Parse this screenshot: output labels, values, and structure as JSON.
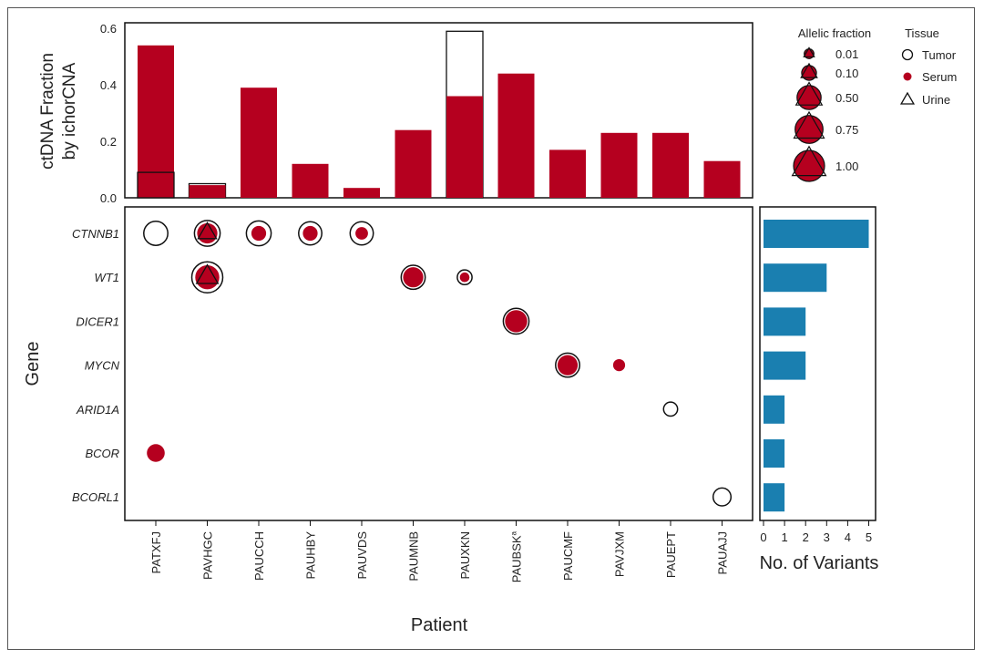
{
  "colors": {
    "serum": "#B5001F",
    "variants_bar": "#1A7FB0",
    "outline": "#111111"
  },
  "chart_data": [
    {
      "type": "bar",
      "ylabel_lines": [
        "ctDNA Fraction",
        "by ichorCNA"
      ],
      "ylim": [
        0,
        0.62
      ],
      "yticks": [
        "0.0",
        "0.2",
        "0.4",
        "0.6"
      ],
      "ytick_values": [
        0,
        0.2,
        0.4,
        0.6
      ],
      "categories": [
        "PATXFJ",
        "PAVHGC",
        "PAUCCH",
        "PAUHBY",
        "PAUVDS",
        "PAUMNB",
        "PAUXKN",
        "PAUBSK",
        "PAUCMF",
        "PAVJXM",
        "PAUEPT",
        "PAUAJJ"
      ],
      "series": [
        {
          "tissue": "Serum",
          "values": [
            0.54,
            0.045,
            0.39,
            0.12,
            0.035,
            0.24,
            0.36,
            0.44,
            0.17,
            0.23,
            0.23,
            0.13
          ]
        },
        {
          "tissue": "Urine",
          "values": [
            0.09,
            0.05,
            null,
            null,
            null,
            null,
            0.59,
            null,
            null,
            null,
            null,
            null
          ]
        }
      ]
    },
    {
      "type": "scatter",
      "xlabel": "Patient",
      "ylabel": "Gene",
      "genes": [
        "CTNNB1",
        "WT1",
        "DICER1",
        "MYCN",
        "ARID1A",
        "BCOR",
        "BCORL1"
      ],
      "patients": [
        "PATXFJ",
        "PAVHGC",
        "PAUCCH",
        "PAUHBY",
        "PAUVDS",
        "PAUMNB",
        "PAUXKN",
        "PAUBSK",
        "PAUCMF",
        "PAVJXM",
        "PAUEPT",
        "PAUAJJ"
      ],
      "patient_superscript": {
        "PAUBSK": "a"
      },
      "points": [
        {
          "gene": "CTNNB1",
          "patient": "PATXFJ",
          "tumor": 0.5
        },
        {
          "gene": "CTNNB1",
          "patient": "PAVHGC",
          "tumor": 0.6,
          "serum": 0.3,
          "urine": 0.35
        },
        {
          "gene": "CTNNB1",
          "patient": "PAUCCH",
          "tumor": 0.55,
          "serum": 0.1
        },
        {
          "gene": "CTNNB1",
          "patient": "PAUHBY",
          "tumor": 0.45,
          "serum": 0.1
        },
        {
          "gene": "CTNNB1",
          "patient": "PAUVDS",
          "tumor": 0.45,
          "serum": 0.05
        },
        {
          "gene": "WT1",
          "patient": "PAVHGC",
          "tumor": 1.0,
          "serum": 0.5,
          "urine": 0.55
        },
        {
          "gene": "WT1",
          "patient": "PAUMNB",
          "tumor": 0.5,
          "serum": 0.3
        },
        {
          "gene": "WT1",
          "patient": "PAUXKN",
          "tumor": 0.1,
          "serum": 0.01
        },
        {
          "gene": "DICER1",
          "patient": "PAUBSK",
          "tumor": 0.6,
          "serum": 0.4
        },
        {
          "gene": "MYCN",
          "patient": "PAUCMF",
          "tumor": 0.5,
          "serum": 0.3
        },
        {
          "gene": "MYCN",
          "patient": "PAVJXM",
          "serum": 0.04
        },
        {
          "gene": "ARID1A",
          "patient": "PAUEPT",
          "tumor": 0.08
        },
        {
          "gene": "BCOR",
          "patient": "PATXFJ",
          "tumor": 0.05,
          "serum": 0.2
        },
        {
          "gene": "BCORL1",
          "patient": "PAUAJJ",
          "tumor": 0.2
        }
      ]
    },
    {
      "type": "bar",
      "orientation": "horizontal",
      "xlabel": "No. of Variants",
      "categories": [
        "CTNNB1",
        "WT1",
        "DICER1",
        "MYCN",
        "ARID1A",
        "BCOR",
        "BCORL1"
      ],
      "values": [
        5,
        3,
        2,
        2,
        1,
        1,
        1
      ],
      "xlim": [
        0,
        5.5
      ],
      "xticks": [
        "0",
        "1",
        "2",
        "3",
        "4",
        "5"
      ]
    }
  ],
  "legend": {
    "size_title": "Allelic fraction",
    "size_entries": [
      {
        "label": "0.01",
        "value": 0.01
      },
      {
        "label": "0.10",
        "value": 0.1
      },
      {
        "label": "0.50",
        "value": 0.5
      },
      {
        "label": "0.75",
        "value": 0.75
      },
      {
        "label": "1.00",
        "value": 1.0
      }
    ],
    "tissue_title": "Tissue",
    "tissue_entries": [
      "Tumor",
      "Serum",
      "Urine"
    ]
  }
}
